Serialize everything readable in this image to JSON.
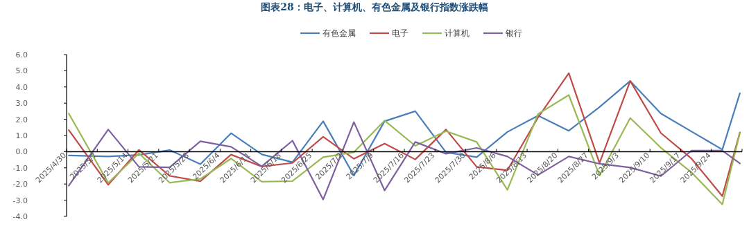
{
  "chart_data": {
    "type": "line",
    "title": "图表28：电子、计算机、有色金属及银行指数涨跌幅",
    "x": [
      "2025-04-30",
      "2025-05-09",
      "2025-05-16",
      "2025-05-23",
      "2025-05-30",
      "2025-06-06",
      "2025-06-13",
      "2025-06-20",
      "2025-06-27",
      "2025-07-04",
      "2025-07-11",
      "2025-07-18",
      "2025-07-25",
      "2025-08-01",
      "2025-08-08",
      "2025-08-15",
      "2025-08-22",
      "2025-08-29",
      "2025-09-05",
      "2025-09-12",
      "2025-09-19",
      "2025-09-26",
      "2025-09-30"
    ],
    "series": [
      {
        "name": "有色金属",
        "color": "#4a7ebb",
        "values": [
          -0.23,
          -0.3,
          -0.2,
          0.1,
          -0.77,
          1.14,
          -0.17,
          -0.65,
          1.88,
          -1.48,
          1.88,
          2.5,
          -0.04,
          -0.34,
          1.22,
          2.23,
          1.29,
          2.76,
          4.37,
          2.36,
          1.24,
          0.13,
          3.61
        ]
      },
      {
        "name": "电子",
        "color": "#be4b48",
        "values": [
          1.34,
          -2.05,
          0.11,
          -1.5,
          -1.83,
          -0.18,
          -0.92,
          -0.7,
          0.92,
          -0.44,
          0.5,
          -0.48,
          1.37,
          -0.94,
          -1.15,
          2.12,
          4.85,
          -0.7,
          4.37,
          1.15,
          -0.44,
          -2.75,
          1.19
        ]
      },
      {
        "name": "计算机",
        "color": "#98b954",
        "values": [
          2.36,
          -1.93,
          -0.1,
          -1.92,
          -1.69,
          -0.43,
          -1.86,
          -1.82,
          -0.34,
          -0.04,
          1.92,
          0.36,
          1.27,
          0.6,
          -2.36,
          2.33,
          3.5,
          -1.47,
          2.08,
          0.24,
          -1.29,
          -3.26,
          1.15
        ]
      },
      {
        "name": "银行",
        "color": "#7d60a0",
        "values": [
          -2.1,
          1.37,
          -0.94,
          -0.97,
          0.64,
          0.3,
          -0.91,
          0.68,
          -2.96,
          1.83,
          -2.4,
          0.6,
          -0.13,
          0.23,
          -0.3,
          -1.44,
          -0.3,
          -0.75,
          -0.98,
          -1.51,
          0.07,
          0.07,
          -0.73
        ]
      }
    ],
    "xlim": [
      "2025-04-30",
      "2025-10-01"
    ],
    "xticks": [
      {
        "value": "2025-04-30",
        "label": "2025/4/30"
      },
      {
        "value": "2025-05-07",
        "label": "2025/5/7"
      },
      {
        "value": "2025-05-14",
        "label": "2025/5/14"
      },
      {
        "value": "2025-05-21",
        "label": "2025/5/21"
      },
      {
        "value": "2025-05-28",
        "label": "2025/5/28"
      },
      {
        "value": "2025-06-04",
        "label": "2025/6/4"
      },
      {
        "value": "2025-06-11",
        "label": "2025/6/11"
      },
      {
        "value": "2025-06-18",
        "label": "2025/6/18"
      },
      {
        "value": "2025-06-25",
        "label": "2025/6/25"
      },
      {
        "value": "2025-07-02",
        "label": "2025/7/2"
      },
      {
        "value": "2025-07-09",
        "label": "2025/7/9"
      },
      {
        "value": "2025-07-16",
        "label": "2025/7/16"
      },
      {
        "value": "2025-07-23",
        "label": "2025/7/23"
      },
      {
        "value": "2025-07-30",
        "label": "2025/7/30"
      },
      {
        "value": "2025-08-06",
        "label": "2025/8/6"
      },
      {
        "value": "2025-08-13",
        "label": "2025/8/13"
      },
      {
        "value": "2025-08-20",
        "label": "2025/8/20"
      },
      {
        "value": "2025-08-27",
        "label": "2025/8/27"
      },
      {
        "value": "2025-09-03",
        "label": "2025/9/3"
      },
      {
        "value": "2025-09-10",
        "label": "2025/9/10"
      },
      {
        "value": "2025-09-17",
        "label": "2025/9/17"
      },
      {
        "value": "2025-09-24",
        "label": "2025/9/24"
      },
      {
        "value": "2025-10-01",
        "label": null
      }
    ],
    "ylim": [
      -4,
      6
    ],
    "yticks": [
      {
        "value": 6,
        "label": "6.0"
      },
      {
        "value": 5,
        "label": "5.0"
      },
      {
        "value": 4,
        "label": "4.0"
      },
      {
        "value": 3,
        "label": "3.0"
      },
      {
        "value": 2,
        "label": "2.0"
      },
      {
        "value": 1,
        "label": "1.0"
      },
      {
        "value": 0,
        "label": "0.0"
      },
      {
        "value": -1,
        "label": "-1.0"
      },
      {
        "value": -2,
        "label": "-2.0"
      },
      {
        "value": -3,
        "label": "-3.0"
      },
      {
        "value": -4,
        "label": "-4.0"
      }
    ],
    "legend": "top",
    "grid": false,
    "marker": "none",
    "line_style": "solid"
  }
}
